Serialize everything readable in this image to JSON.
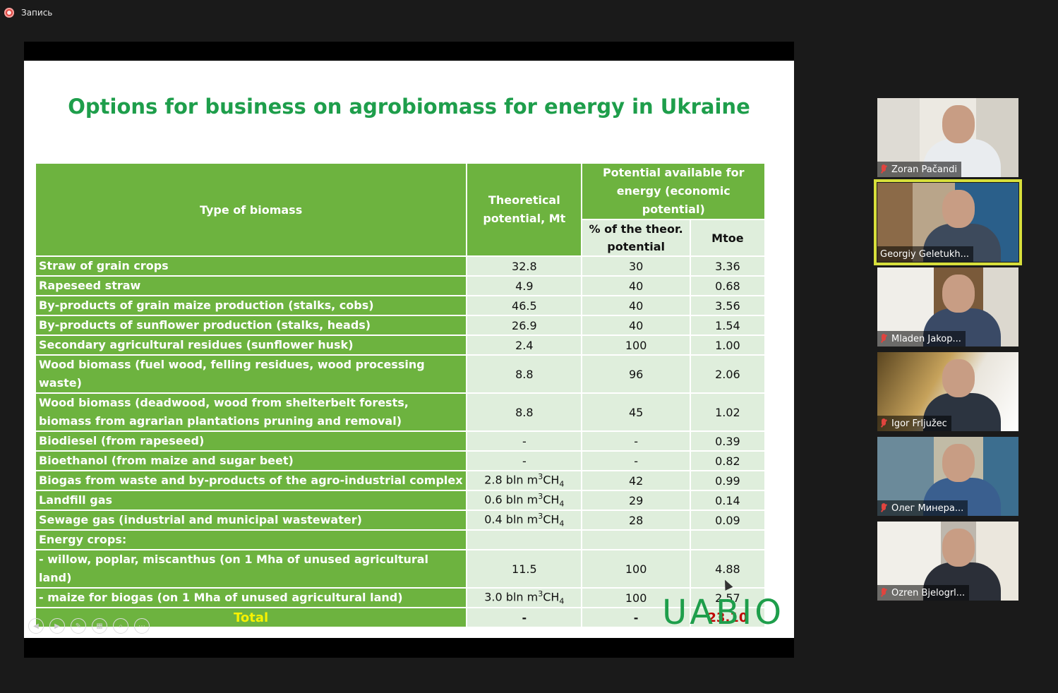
{
  "recording": {
    "label": "Запись"
  },
  "slide": {
    "title": "Options for business on agrobiomass for energy in Ukraine",
    "logo": "UABIO",
    "table": {
      "header_type": "Type of biomass",
      "header_theoretical": "Theoretical potential, Mt",
      "header_available": "Potential available for energy (economic potential)",
      "header_percent": "% of the theor. potential",
      "header_mtoe": "Mtoe",
      "rows": [
        {
          "type": "Straw of grain crops",
          "theor": "32.8",
          "pct": "30",
          "mtoe": "3.36"
        },
        {
          "type": "Rapeseed straw",
          "theor": "4.9",
          "pct": "40",
          "mtoe": "0.68"
        },
        {
          "type": "By-products of grain maize production (stalks, cobs)",
          "theor": "46.5",
          "pct": "40",
          "mtoe": "3.56"
        },
        {
          "type": "By-products of sunflower production (stalks, heads)",
          "theor": "26.9",
          "pct": "40",
          "mtoe": "1.54"
        },
        {
          "type": "Secondary agricultural residues (sunflower husk)",
          "theor": "2.4",
          "pct": "100",
          "mtoe": "1.00"
        },
        {
          "type": "Wood biomass (fuel wood, felling residues, wood processing waste)",
          "theor": "8.8",
          "pct": "96",
          "mtoe": "2.06"
        },
        {
          "type": "Wood biomass (deadwood, wood from shelterbelt forests, biomass from agrarian plantations pruning and removal)",
          "theor": "8.8",
          "pct": "45",
          "mtoe": "1.02"
        },
        {
          "type": "Biodiesel (from rapeseed)",
          "theor": "-",
          "pct": "-",
          "mtoe": "0.39"
        },
        {
          "type": "Bioethanol (from maize and sugar beet)",
          "theor": "-",
          "pct": "-",
          "mtoe": "0.82"
        },
        {
          "type": "Biogas from waste and by-products of the agro-industrial complex",
          "theor_num": "2.8",
          "theor_unit": "bln m",
          "theor_sup": "3",
          "theor_gas": "CH",
          "theor_sub": "4",
          "pct": "42",
          "mtoe": "0.99"
        },
        {
          "type": "Landfill gas",
          "theor_num": "0.6",
          "theor_unit": "bln m",
          "theor_sup": "3",
          "theor_gas": "CH",
          "theor_sub": "4",
          "pct": "29",
          "mtoe": "0.14"
        },
        {
          "type": "Sewage gas (industrial and municipal wastewater)",
          "theor_num": "0.4",
          "theor_unit": "bln m",
          "theor_sup": "3",
          "theor_gas": "CH",
          "theor_sub": "4",
          "pct": "28",
          "mtoe": "0.09"
        },
        {
          "type": "Energy crops:",
          "theor": "",
          "pct": "",
          "mtoe": ""
        },
        {
          "type": "- willow, poplar, miscanthus (on 1 Mha of unused agricultural land)",
          "theor": "11.5",
          "pct": "100",
          "mtoe": "4.88"
        },
        {
          "type": "- maize for biogas (on 1 Mha of unused agricultural land)",
          "theor_num": "3.0",
          "theor_unit": "bln m",
          "theor_sup": "3",
          "theor_gas": "CH",
          "theor_sub": "4",
          "pct": "100",
          "mtoe": "2.57"
        }
      ],
      "total": {
        "label": "Total",
        "theor": "-",
        "pct": "-",
        "mtoe": "23.10"
      }
    }
  },
  "participants": [
    {
      "name": "Zoran Pačandi",
      "muted": true,
      "active": false
    },
    {
      "name": "Georgiy Geletukh...",
      "muted": false,
      "active": true
    },
    {
      "name": "Mladen Jakop...",
      "muted": true,
      "active": false
    },
    {
      "name": "Igor Frljužec",
      "muted": true,
      "active": false
    },
    {
      "name": "Олег Минера...",
      "muted": true,
      "active": false
    },
    {
      "name": "Ozren Bjelogrl...",
      "muted": true,
      "active": false
    }
  ]
}
